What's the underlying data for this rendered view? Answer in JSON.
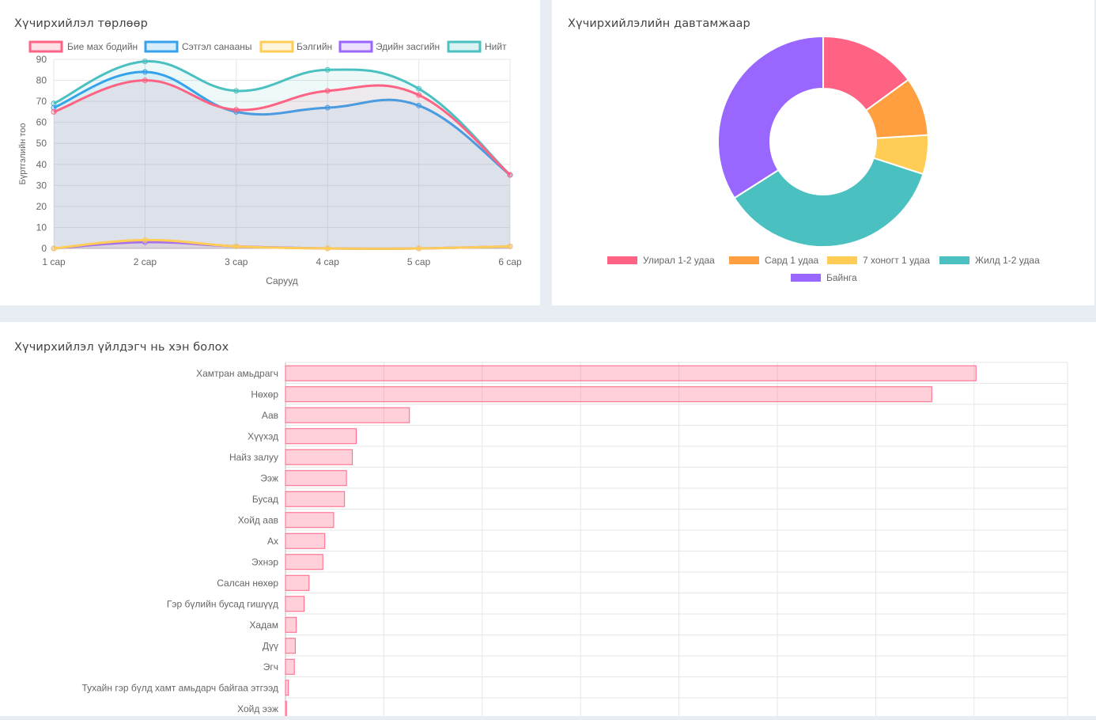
{
  "cards": {
    "line_title": "Хүчирхийлэл төрлөөр",
    "donut_title": "Хүчирхийлэлийн давтамжаар",
    "bar_title": "Хүчирхийлэл үйлдэгч нь хэн болох"
  },
  "chart_data": [
    {
      "type": "line",
      "title": "Хүчирхийлэл төрлөөр",
      "xlabel": "Сарууд",
      "ylabel": "Бүртгэлийн тоо",
      "ylim": [
        0,
        90
      ],
      "yticks": [
        0,
        10,
        20,
        30,
        40,
        50,
        60,
        70,
        80,
        90
      ],
      "grid": true,
      "legend": "top",
      "categories": [
        "1 сар",
        "2 сар",
        "3 сар",
        "4 сар",
        "5 сар",
        "6 сар"
      ],
      "series": [
        {
          "name": "Бие мах бодийн",
          "color": "#ff6384",
          "values": [
            65,
            80,
            66,
            75,
            73,
            35
          ]
        },
        {
          "name": "Сэтгэл санааны",
          "color": "#36a2eb",
          "values": [
            67,
            84,
            65,
            67,
            68,
            35
          ]
        },
        {
          "name": "Бэлгийн",
          "color": "#ffcd56",
          "values": [
            0,
            4,
            1,
            0,
            0,
            1
          ]
        },
        {
          "name": "Эдийн засгийн",
          "color": "#9966ff",
          "values": [
            0,
            3,
            1,
            0,
            0,
            1
          ]
        },
        {
          "name": "Нийт",
          "color": "#4bc0c0",
          "values": [
            69,
            89,
            75,
            85,
            76,
            35
          ]
        }
      ]
    },
    {
      "type": "pie",
      "title": "Хүчирхийлэлийн давтамжаар",
      "legend": "bottom",
      "categories": [
        "Улирал 1-2 удаа",
        "Сард 1 удаа",
        "7 хоногт 1 удаа",
        "Жилд 1-2 удаа",
        "Байнга"
      ],
      "values": [
        15,
        9,
        6,
        36,
        34
      ],
      "colors": [
        "#ff6384",
        "#ff9f40",
        "#ffcd56",
        "#4bc0c0",
        "#9966ff"
      ]
    },
    {
      "type": "bar",
      "title": "Хүчирхийлэл үйлдэгч нь хэн болох",
      "orientation": "horizontal",
      "xlim": [
        0,
        1000
      ],
      "grid": true,
      "color": "#ff6384",
      "categories": [
        "Хамтран амьдрагч",
        "Нөхөр",
        "Аав",
        "Хүүхэд",
        "Найз залуу",
        "Ээж",
        "Бусад",
        "Хойд аав",
        "Ах",
        "Эхнэр",
        "Салсан нөхөр",
        "Гэр бүлийн бусад гишүүд",
        "Хадам",
        "Дүү",
        "Эгч",
        "Тухайн гэр бүлд хамт амьдарч байгаа этгээд",
        "Хойд ээж"
      ],
      "values": [
        702,
        657,
        126,
        72,
        68,
        62,
        60,
        49,
        40,
        38,
        24,
        19,
        11,
        10,
        9,
        3,
        1
      ]
    }
  ]
}
